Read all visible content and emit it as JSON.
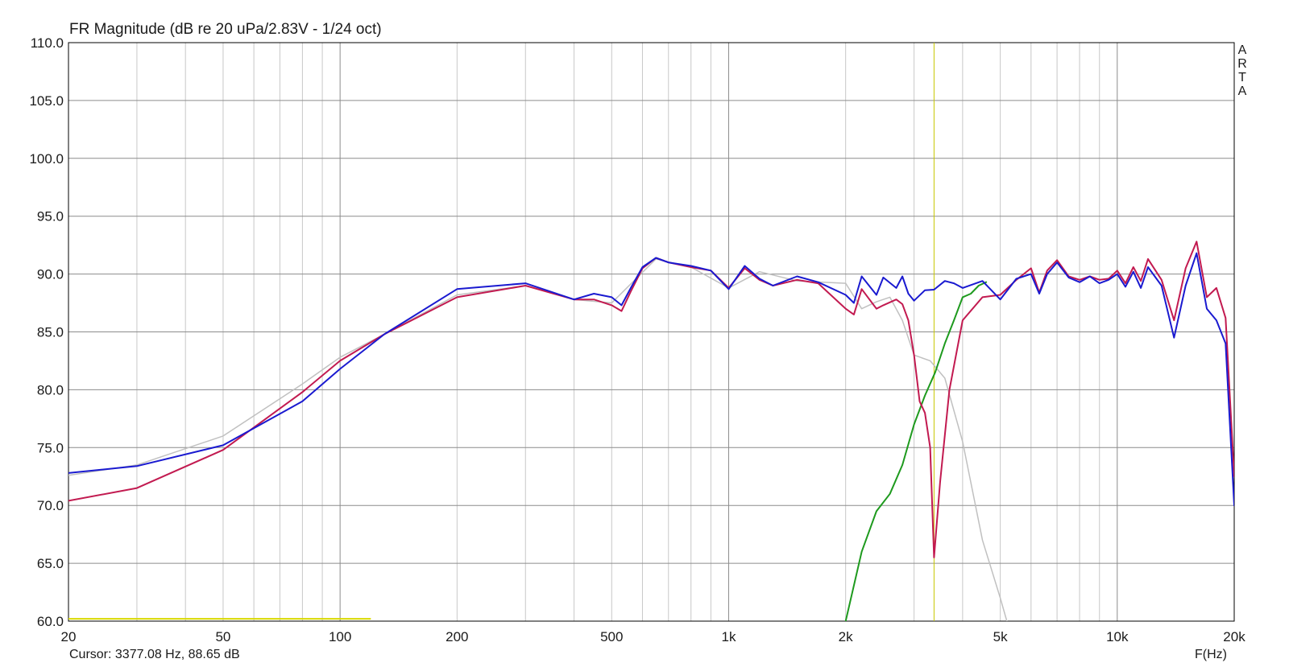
{
  "chart_data": {
    "type": "line",
    "title": "FR Magnitude (dB re 20 uPa/2.83V - 1/24 oct)",
    "xlabel": "F(Hz)",
    "x_scale": "log",
    "xlim": [
      20,
      20000
    ],
    "ylim": [
      60,
      110
    ],
    "x_ticks": [
      {
        "value": 20,
        "label": "20"
      },
      {
        "value": 50,
        "label": "50"
      },
      {
        "value": 100,
        "label": "100"
      },
      {
        "value": 200,
        "label": "200"
      },
      {
        "value": 500,
        "label": "500"
      },
      {
        "value": 1000,
        "label": "1k"
      },
      {
        "value": 2000,
        "label": "2k"
      },
      {
        "value": 5000,
        "label": "5k"
      },
      {
        "value": 10000,
        "label": "10k"
      },
      {
        "value": 20000,
        "label": "20k"
      }
    ],
    "y_ticks": [
      {
        "value": 60,
        "label": "60.0"
      },
      {
        "value": 65,
        "label": "65.0"
      },
      {
        "value": 70,
        "label": "70.0"
      },
      {
        "value": 75,
        "label": "75.0"
      },
      {
        "value": 80,
        "label": "80.0"
      },
      {
        "value": 85,
        "label": "85.0"
      },
      {
        "value": 90,
        "label": "90.0"
      },
      {
        "value": 95,
        "label": "95.0"
      },
      {
        "value": 100,
        "label": "100.0"
      },
      {
        "value": 105,
        "label": "105.0"
      },
      {
        "value": 110,
        "label": "110.0"
      }
    ],
    "grid": true,
    "cursor": {
      "x": 3377.08,
      "y": 88.65,
      "label": "Cursor: 3377.08 Hz, 88.65 dB",
      "color": "#c8c800"
    },
    "marker_band": {
      "x": [
        20,
        120
      ],
      "y": 60.2,
      "color": "#d8d800"
    },
    "brand": "ARTA",
    "series": [
      {
        "color": "#c0c0c0",
        "x": [
          20,
          30,
          50,
          80,
          100,
          130,
          200,
          300,
          400,
          500,
          650,
          800,
          1000,
          1200,
          1500,
          2000,
          2200,
          2400,
          2600,
          2800,
          3000,
          3300,
          3600,
          4000,
          4500,
          5000,
          5200
        ],
        "y": [
          72.6,
          73.5,
          76.0,
          80.5,
          82.8,
          84.8,
          88.2,
          89.0,
          87.8,
          87.5,
          91.3,
          90.6,
          88.8,
          90.2,
          89.4,
          89.2,
          87.0,
          87.6,
          88.0,
          86.0,
          83.0,
          82.5,
          81.0,
          75.5,
          67.0,
          62.0,
          60.0
        ]
      },
      {
        "color": "#1e9a1e",
        "x": [
          2000,
          2200,
          2400,
          2600,
          2800,
          3000,
          3200,
          3400,
          3600,
          3800,
          4000,
          4200,
          4400,
          4600
        ],
        "y": [
          60.0,
          66.0,
          69.5,
          71.0,
          73.5,
          77.0,
          79.5,
          81.5,
          84.0,
          86.0,
          88.0,
          88.3,
          89.0,
          89.3
        ]
      },
      {
        "color": "#c21a50",
        "x": [
          20,
          30,
          50,
          80,
          100,
          130,
          200,
          300,
          400,
          450,
          500,
          530,
          560,
          600,
          650,
          700,
          800,
          900,
          1000,
          1100,
          1200,
          1300,
          1500,
          1700,
          2000,
          2100,
          2200,
          2400,
          2500,
          2700,
          2800,
          2900,
          3000,
          3100,
          3200,
          3300,
          3377,
          3500,
          3700,
          4000,
          4500,
          5000,
          5500,
          6000,
          6300,
          6600,
          7000,
          7500,
          8000,
          8500,
          9000,
          9500,
          10000,
          10500,
          11000,
          11500,
          12000,
          13000,
          14000,
          15000,
          16000,
          17000,
          18000,
          19000,
          20000
        ],
        "y": [
          70.4,
          71.5,
          74.8,
          79.8,
          82.5,
          84.8,
          88.0,
          89.0,
          87.8,
          87.8,
          87.3,
          86.8,
          88.5,
          90.5,
          91.4,
          91.0,
          90.6,
          90.3,
          88.8,
          90.5,
          89.5,
          89.0,
          89.5,
          89.2,
          87.0,
          86.5,
          88.7,
          87.0,
          87.3,
          87.8,
          87.4,
          86.0,
          83.0,
          79.0,
          78.0,
          75.0,
          65.5,
          72.0,
          80.0,
          86.0,
          88.0,
          88.2,
          89.5,
          90.5,
          88.4,
          90.3,
          91.2,
          89.8,
          89.5,
          89.8,
          89.5,
          89.6,
          90.3,
          89.2,
          90.6,
          89.4,
          91.3,
          89.5,
          86.0,
          90.5,
          92.8,
          88.0,
          88.8,
          86.2,
          72.5
        ]
      },
      {
        "color": "#1a1ad0",
        "x": [
          20,
          30,
          50,
          80,
          100,
          130,
          200,
          300,
          400,
          450,
          500,
          530,
          560,
          600,
          650,
          700,
          800,
          900,
          1000,
          1100,
          1200,
          1300,
          1500,
          1700,
          2000,
          2100,
          2200,
          2400,
          2500,
          2700,
          2800,
          2900,
          3000,
          3200,
          3377,
          3600,
          3800,
          4000,
          4500,
          5000,
          5500,
          6000,
          6300,
          6600,
          7000,
          7500,
          8000,
          8500,
          9000,
          9500,
          10000,
          10500,
          11000,
          11500,
          12000,
          13000,
          14000,
          15000,
          16000,
          17000,
          18000,
          19000,
          20000
        ],
        "y": [
          72.8,
          73.4,
          75.2,
          79.0,
          81.8,
          84.8,
          88.7,
          89.2,
          87.8,
          88.3,
          88.0,
          87.3,
          88.8,
          90.6,
          91.4,
          91.0,
          90.7,
          90.3,
          88.7,
          90.7,
          89.6,
          89.0,
          89.8,
          89.3,
          88.2,
          87.5,
          89.8,
          88.2,
          89.7,
          88.8,
          89.8,
          88.3,
          87.7,
          88.6,
          88.65,
          89.4,
          89.2,
          88.8,
          89.4,
          87.8,
          89.6,
          90.0,
          88.3,
          90.0,
          91.0,
          89.7,
          89.3,
          89.8,
          89.2,
          89.5,
          90.0,
          88.9,
          90.2,
          88.8,
          90.6,
          89.0,
          84.5,
          89.0,
          91.8,
          87.0,
          86.0,
          84.0,
          70.0
        ]
      }
    ]
  }
}
